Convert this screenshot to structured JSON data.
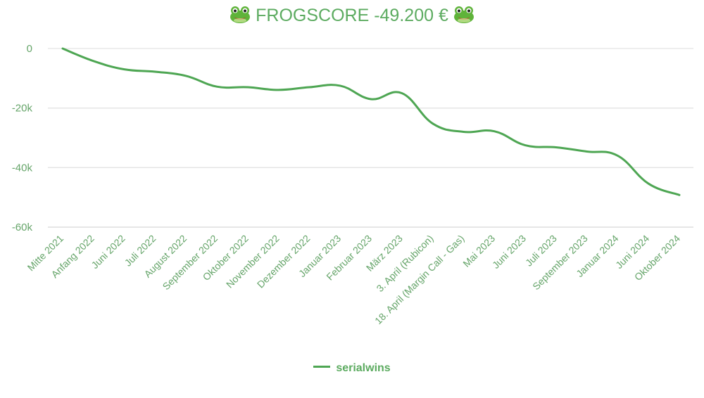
{
  "title": {
    "prefix_icon": "frog-face-icon",
    "text": "FROGSCORE -49.200 €",
    "suffix_icon": "frog-face-icon"
  },
  "colors": {
    "line": "#4ea653",
    "text": "#5cab60",
    "grid": "#e3e3e3"
  },
  "legend": {
    "label": "serialwins"
  },
  "chart_data": {
    "type": "line",
    "title": "🐸 FROGSCORE -49.200 € 🐸",
    "xlabel": "",
    "ylabel": "",
    "ylim": [
      -60000,
      0
    ],
    "yticks": [
      0,
      -20000,
      -40000,
      -60000
    ],
    "ytick_labels": [
      "0",
      "-20k",
      "-40k",
      "-60k"
    ],
    "grid": true,
    "legend_position": "bottom",
    "smooth": true,
    "categories": [
      "Mitte 2021",
      "Anfang 2022",
      "Juni 2022",
      "Juli 2022",
      "August 2022",
      "September 2022",
      "Oktober 2022",
      "November 2022",
      "Dezember 2022",
      "Januar 2023",
      "Februar 2023",
      "März 2023",
      "3. April (Rubicon)",
      "18. April (Margin Call - Gas)",
      "Mai 2023",
      "Juni 2023",
      "Juli 2023",
      "September 2023",
      "Januar 2024",
      "Juni 2024",
      "Oktober 2024"
    ],
    "series": [
      {
        "name": "serialwins",
        "values": [
          0,
          -4200,
          -7000,
          -7800,
          -9200,
          -12800,
          -13000,
          -13900,
          -13000,
          -12500,
          -17000,
          -15000,
          -25200,
          -28000,
          -27800,
          -32500,
          -33200,
          -34600,
          -36000,
          -45400,
          -49200
        ]
      }
    ]
  }
}
